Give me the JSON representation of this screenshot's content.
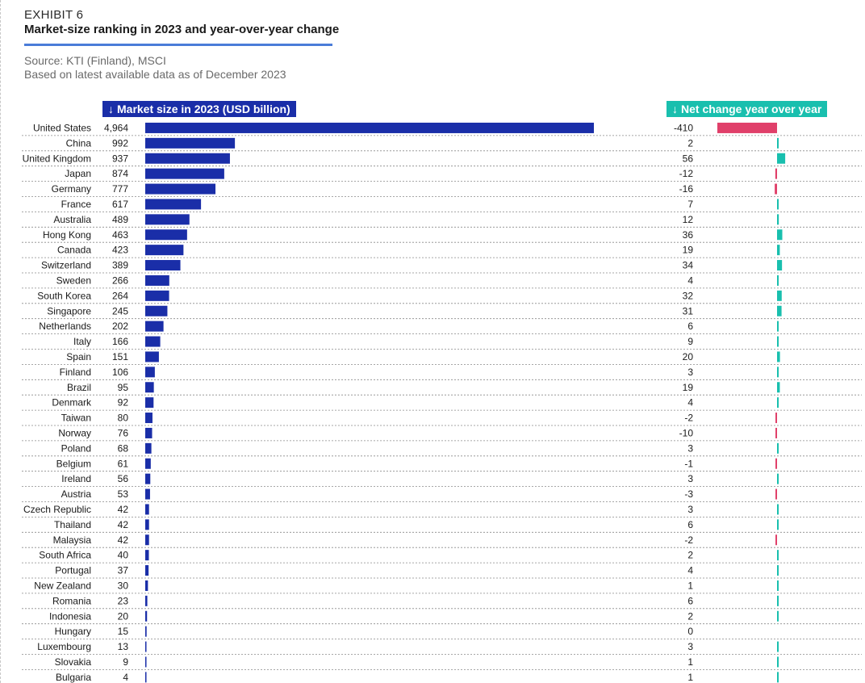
{
  "header": {
    "exhibit": "EXHIBIT 6",
    "title": "Market-size ranking in 2023 and year-over-year change",
    "source": "Source: KTI (Finland), MSCI",
    "note": "Based on latest available data as of December 2023"
  },
  "columns": {
    "size_header": "Market size in 2023 (USD billion)",
    "change_header": "Net change year over year",
    "arrow": "↓"
  },
  "colors": {
    "size_bar": "#1a2ea8",
    "positive": "#19bfae",
    "negative": "#e0406a",
    "title_rule": "#4a7cd8"
  },
  "chart_data": {
    "type": "bar",
    "categories": [
      "United States",
      "China",
      "United Kingdom",
      "Japan",
      "Germany",
      "France",
      "Australia",
      "Hong Kong",
      "Canada",
      "Switzerland",
      "Sweden",
      "South Korea",
      "Singapore",
      "Netherlands",
      "Italy",
      "Spain",
      "Finland",
      "Brazil",
      "Denmark",
      "Taiwan",
      "Norway",
      "Poland",
      "Belgium",
      "Ireland",
      "Austria",
      "Czech Republic",
      "Thailand",
      "Malaysia",
      "South Africa",
      "Portugal",
      "New Zealand",
      "Romania",
      "Indonesia",
      "Hungary",
      "Luxembourg",
      "Slovakia",
      "Bulgaria"
    ],
    "series": [
      {
        "name": "Market size in 2023 (USD billion)",
        "values": [
          4964,
          992,
          937,
          874,
          777,
          617,
          489,
          463,
          423,
          389,
          266,
          264,
          245,
          202,
          166,
          151,
          106,
          95,
          92,
          80,
          76,
          68,
          61,
          56,
          53,
          42,
          42,
          42,
          40,
          37,
          30,
          23,
          20,
          15,
          13,
          9,
          4
        ],
        "labels": [
          "4,964",
          "992",
          "937",
          "874",
          "777",
          "617",
          "489",
          "463",
          "423",
          "389",
          "266",
          "264",
          "245",
          "202",
          "166",
          "151",
          "106",
          "95",
          "92",
          "80",
          "76",
          "68",
          "61",
          "56",
          "53",
          "42",
          "42",
          "42",
          "40",
          "37",
          "30",
          "23",
          "20",
          "15",
          "13",
          "9",
          "4"
        ]
      },
      {
        "name": "Net change year over year",
        "values": [
          -410,
          2,
          56,
          -12,
          -16,
          7,
          12,
          36,
          19,
          34,
          4,
          32,
          31,
          6,
          9,
          20,
          3,
          19,
          4,
          -2,
          -10,
          3,
          -1,
          3,
          -3,
          3,
          6,
          -2,
          2,
          4,
          1,
          6,
          2,
          0,
          3,
          1,
          1
        ],
        "labels": [
          "-410",
          "2",
          "56",
          "-12",
          "-16",
          "7",
          "12",
          "36",
          "19",
          "34",
          "4",
          "32",
          "31",
          "6",
          "9",
          "20",
          "3",
          "19",
          "4",
          "-2",
          "-10",
          "3",
          "-1",
          "3",
          "-3",
          "3",
          "6",
          "-2",
          "2",
          "4",
          "1",
          "6",
          "2",
          "0",
          "3",
          "1",
          "1"
        ]
      }
    ],
    "grid": "dotted row separators",
    "legend": "none"
  }
}
